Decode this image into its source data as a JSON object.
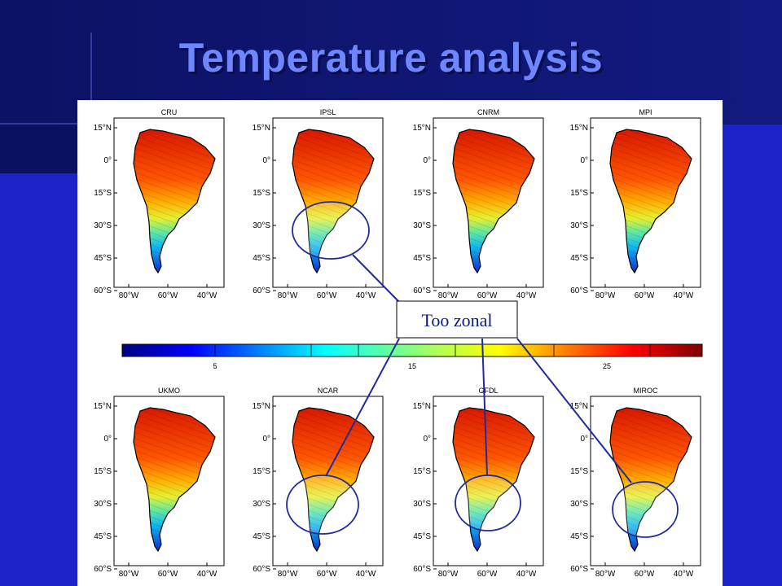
{
  "slide": {
    "title": "Temperature analysis",
    "colors": {
      "background": "#1c23c9",
      "header_band": "#0d1275",
      "title": "#6f86ff",
      "annotation": "#202a9c"
    }
  },
  "figure": {
    "panels": [
      {
        "label": "CRU",
        "row": 0,
        "col": 0,
        "highlighted": false
      },
      {
        "label": "IPSL",
        "row": 0,
        "col": 1,
        "highlighted": true
      },
      {
        "label": "CNRM",
        "row": 0,
        "col": 2,
        "highlighted": false
      },
      {
        "label": "MPI",
        "row": 0,
        "col": 3,
        "highlighted": false
      },
      {
        "label": "UKMO",
        "row": 1,
        "col": 0,
        "highlighted": false
      },
      {
        "label": "NCAR",
        "row": 1,
        "col": 1,
        "highlighted": true
      },
      {
        "label": "GFDL",
        "row": 1,
        "col": 2,
        "highlighted": true
      },
      {
        "label": "MIROC",
        "row": 1,
        "col": 3,
        "highlighted": true
      }
    ],
    "lat_ticks": [
      "15°N",
      "0°",
      "15°S",
      "30°S",
      "45°S",
      "60°S"
    ],
    "lon_ticks": [
      "80°W",
      "60°W",
      "40°W"
    ],
    "colorbar": {
      "ticks": [
        "5",
        "15",
        "25"
      ],
      "colormap": "jet"
    },
    "callout": {
      "text": "Too zonal"
    }
  }
}
